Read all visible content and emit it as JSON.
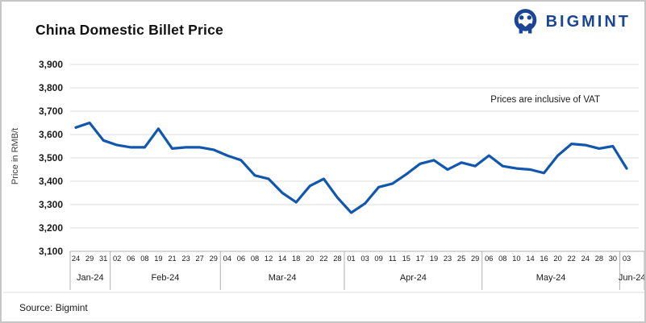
{
  "header": {
    "title": "China Domestic Billet Price",
    "brand": "BIGMINT"
  },
  "footer": {
    "source": "Source: Bigmint"
  },
  "colors": {
    "line_blue": "#1257ae",
    "brand_blue": "#1b4696",
    "grid": "#dcdcdc",
    "axis": "#b0b0b0",
    "text": "#1a1a1a"
  },
  "chart_data": {
    "type": "line",
    "title": "China Domestic Billet Price",
    "ylabel": "Price in RMB/t",
    "annotation": "Prices are inclusive of VAT",
    "ylim": [
      3100,
      3900
    ],
    "ytick_interval": 100,
    "grid": true,
    "legend_position": "none",
    "line_color": "#1257ae",
    "x_day_labels": [
      "24",
      "29",
      "31",
      "02",
      "06",
      "08",
      "19",
      "21",
      "23",
      "27",
      "29",
      "04",
      "06",
      "08",
      "12",
      "14",
      "18",
      "20",
      "22",
      "28",
      "01",
      "03",
      "09",
      "11",
      "15",
      "17",
      "19",
      "23",
      "25",
      "29",
      "06",
      "08",
      "10",
      "14",
      "16",
      "20",
      "22",
      "24",
      "28",
      "30",
      "03"
    ],
    "month_groups": [
      {
        "label": "Jan-24",
        "count": 3
      },
      {
        "label": "Feb-24",
        "count": 8
      },
      {
        "label": "Mar-24",
        "count": 9
      },
      {
        "label": "Apr-24",
        "count": 10
      },
      {
        "label": "May-24",
        "count": 10
      },
      {
        "label": "Jun-24",
        "count": 1
      }
    ],
    "values": [
      3630,
      3650,
      3575,
      3555,
      3545,
      3545,
      3625,
      3540,
      3545,
      3545,
      3535,
      3510,
      3490,
      3425,
      3410,
      3350,
      3310,
      3380,
      3410,
      3330,
      3265,
      3305,
      3375,
      3390,
      3430,
      3475,
      3490,
      3450,
      3480,
      3465,
      3510,
      3465,
      3455,
      3450,
      3435,
      3510,
      3560,
      3555,
      3540,
      3550,
      3455
    ]
  }
}
